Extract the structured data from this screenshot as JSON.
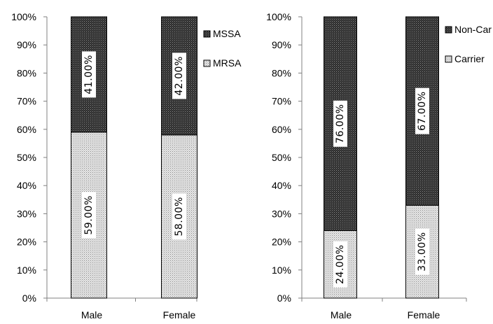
{
  "chart_data": [
    {
      "type": "bar",
      "stacked": true,
      "categories": [
        "Male",
        "Female"
      ],
      "series": [
        {
          "name": "MRSA",
          "values": [
            59,
            58
          ],
          "labels": [
            "59.00%",
            "58.00%"
          ],
          "fill": "light-dotted"
        },
        {
          "name": "MSSA",
          "values": [
            41,
            42
          ],
          "labels": [
            "41.00%",
            "42.00%"
          ],
          "fill": "dark-dotted"
        }
      ],
      "ylim": [
        0,
        100
      ],
      "yticks": [
        "0%",
        "10%",
        "20%",
        "30%",
        "40%",
        "50%",
        "60%",
        "70%",
        "80%",
        "90%",
        "100%"
      ],
      "legend": {
        "placement": "right",
        "entries": [
          "MSSA",
          "MRSA"
        ]
      },
      "grid": false
    },
    {
      "type": "bar",
      "stacked": true,
      "categories": [
        "Male",
        "Female"
      ],
      "series": [
        {
          "name": "Carrier",
          "values": [
            24,
            33
          ],
          "labels": [
            "24.00%",
            "33.00%"
          ],
          "fill": "light-dotted"
        },
        {
          "name": "Non-Car",
          "values": [
            76,
            67
          ],
          "labels": [
            "76.00%",
            "67.00%"
          ],
          "fill": "dark-dotted"
        }
      ],
      "ylim": [
        0,
        100
      ],
      "yticks": [
        "0%",
        "10%",
        "20%",
        "30%",
        "40%",
        "50%",
        "60%",
        "70%",
        "80%",
        "90%",
        "100%"
      ],
      "legend": {
        "placement": "right",
        "entries": [
          "Non-Car",
          "Carrier"
        ]
      },
      "grid": false
    }
  ]
}
